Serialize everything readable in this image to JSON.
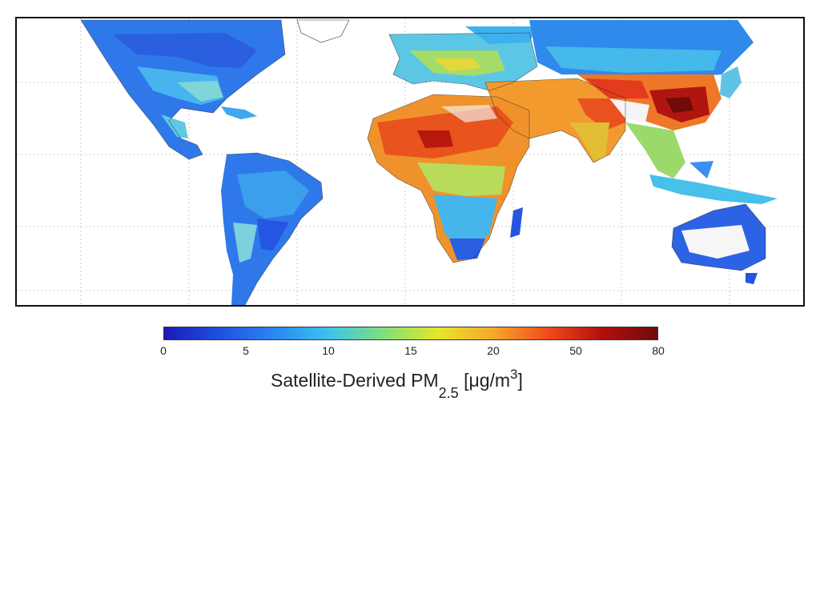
{
  "colorbar": {
    "ticks": [
      "0",
      "5",
      "10",
      "15",
      "20",
      "50",
      "80"
    ],
    "title_main": "Satellite-Derived PM",
    "title_sub": "2.5",
    "title_unit_pre": "[μg/m",
    "title_unit_sup": "3",
    "title_unit_post": "]",
    "colors": [
      "#1a1ab8",
      "#1f4fe0",
      "#2a86f0",
      "#3cc3ee",
      "#7fe07a",
      "#e6e62a",
      "#f6a82a",
      "#f04b1a",
      "#b30e0e",
      "#6e0b0b"
    ]
  },
  "map": {
    "palette": {
      "ocean": "#ffffff",
      "grid": "#c8c8c8",
      "low": "#1d3fd6",
      "mid_low": "#2f8ef0",
      "mid": "#45c8e6",
      "mid_high": "#8fdc6e",
      "yellow": "#e4e030",
      "orange": "#f59a2c",
      "red": "#e8401c",
      "dark_red": "#a50f12",
      "desert_white": "#f4f4f4"
    }
  }
}
